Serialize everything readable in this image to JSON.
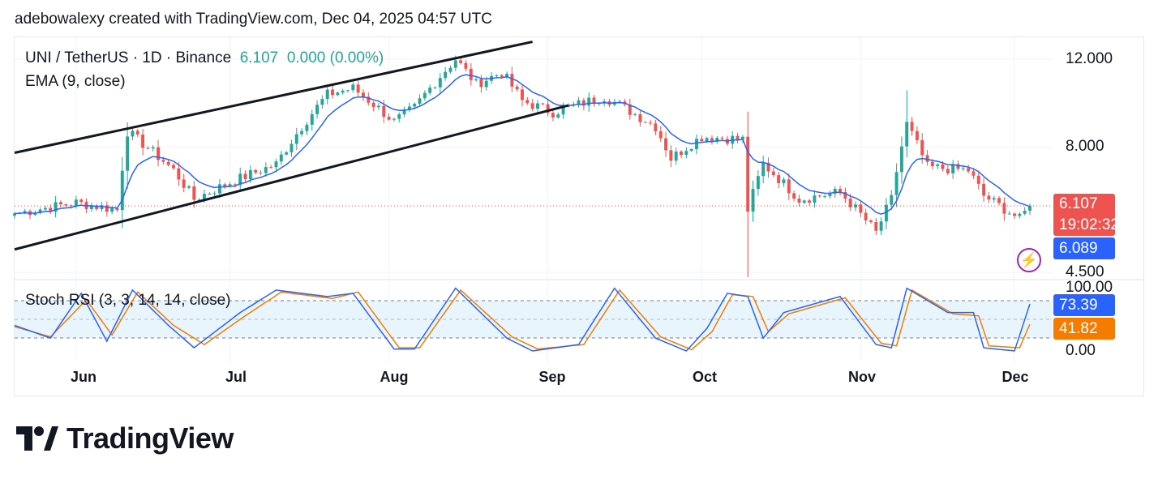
{
  "header": {
    "caption": "adebowalexy created with TradingView.com, Dec 04, 2025 04:57 UTC"
  },
  "legend": {
    "symbol": "UNI / TetherUS · 1D · Binance",
    "last": "6.107",
    "change": "0.000 (0.00%)",
    "ema": "EMA (9, close)",
    "stoch": "Stoch RSI (3, 3, 14, 14, close)"
  },
  "tags": {
    "price": "6.107",
    "countdown": "19:02:32",
    "ema": "6.089",
    "k": "73.39",
    "d": "41.82"
  },
  "price_axis": [
    "12.000",
    "8.000",
    "4.500"
  ],
  "stoch_axis": [
    "100.00",
    "0.00"
  ],
  "months": [
    "Jun",
    "Jul",
    "Aug",
    "Sep",
    "Oct",
    "Nov",
    "Dec"
  ],
  "brand": {
    "name": "TradingView"
  },
  "colors": {
    "up": "#26a69a",
    "down": "#ef5350",
    "ema": "#2962ff",
    "k": "#2962ff",
    "d": "#f57c00",
    "stoch_band": "#e3f2fd",
    "price_tag": "#ef5350",
    "ema_tag": "#2962ff",
    "d_tag": "#f57c00",
    "bolt": "#9c27b0"
  },
  "chart_data": [
    {
      "type": "candlestick",
      "title": "UNI / TetherUS · 1D · Binance",
      "x_range": [
        "2025-05-20",
        "2025-12-04"
      ],
      "y_axis": {
        "scale": "log",
        "ticks": [
          12.0,
          8.0,
          4.5
        ],
        "ylim": [
          4.4,
          13.0
        ]
      },
      "current_price": 6.107,
      "ema_current": 6.089,
      "anchors": [
        {
          "date": "2025-05-20",
          "close": 5.9
        },
        {
          "date": "2025-06-01",
          "close": 6.2
        },
        {
          "date": "2025-06-09",
          "close": 6.0
        },
        {
          "date": "2025-06-11",
          "close": 8.6
        },
        {
          "date": "2025-06-20",
          "close": 7.2
        },
        {
          "date": "2025-06-24",
          "close": 6.3
        },
        {
          "date": "2025-07-01",
          "close": 6.8
        },
        {
          "date": "2025-07-10",
          "close": 7.4
        },
        {
          "date": "2025-07-20",
          "close": 10.2
        },
        {
          "date": "2025-07-25",
          "close": 10.5
        },
        {
          "date": "2025-08-02",
          "close": 9.0
        },
        {
          "date": "2025-08-06",
          "close": 9.6
        },
        {
          "date": "2025-08-14",
          "close": 12.0
        },
        {
          "date": "2025-08-18",
          "close": 10.7
        },
        {
          "date": "2025-08-23",
          "close": 11.3
        },
        {
          "date": "2025-08-27",
          "close": 9.9
        },
        {
          "date": "2025-09-02",
          "close": 9.4
        },
        {
          "date": "2025-09-12",
          "close": 10.1
        },
        {
          "date": "2025-09-22",
          "close": 8.8
        },
        {
          "date": "2025-09-25",
          "close": 7.6
        },
        {
          "date": "2025-10-01",
          "close": 8.4
        },
        {
          "date": "2025-10-09",
          "close": 8.3
        },
        {
          "date": "2025-10-10",
          "close": 6.0
        },
        {
          "date": "2025-10-13",
          "close": 7.4
        },
        {
          "date": "2025-10-20",
          "close": 6.3
        },
        {
          "date": "2025-10-28",
          "close": 6.5
        },
        {
          "date": "2025-11-04",
          "close": 5.4
        },
        {
          "date": "2025-11-07",
          "close": 6.3
        },
        {
          "date": "2025-11-10",
          "close": 8.9
        },
        {
          "date": "2025-11-14",
          "close": 7.3
        },
        {
          "date": "2025-11-22",
          "close": 7.2
        },
        {
          "date": "2025-11-25",
          "close": 6.4
        },
        {
          "date": "2025-12-02",
          "close": 5.75
        },
        {
          "date": "2025-12-04",
          "close": 6.107
        }
      ],
      "trend_channel": {
        "upper": [
          {
            "date": "2025-05-20",
            "price": 7.8
          },
          {
            "date": "2025-08-29",
            "price": 13.0
          }
        ],
        "lower": [
          {
            "date": "2025-05-20",
            "price": 5.0
          },
          {
            "date": "2025-09-05",
            "price": 9.7
          }
        ]
      },
      "series": [
        {
          "name": "EMA (9, close)"
        }
      ]
    },
    {
      "type": "line",
      "title": "Stoch RSI (3, 3, 14, 14, close)",
      "ylim": [
        0,
        100
      ],
      "y_ticks": [
        100,
        0
      ],
      "bands": [
        80,
        50,
        20
      ],
      "series": [
        {
          "name": "K",
          "current": 73.39
        },
        {
          "name": "D",
          "current": 41.82
        }
      ],
      "k_anchors": [
        {
          "date": "2025-05-20",
          "value": 40
        },
        {
          "date": "2025-05-27",
          "value": 20
        },
        {
          "date": "2025-06-02",
          "value": 90
        },
        {
          "date": "2025-06-07",
          "value": 15
        },
        {
          "date": "2025-06-12",
          "value": 95
        },
        {
          "date": "2025-06-19",
          "value": 40
        },
        {
          "date": "2025-06-24",
          "value": 5
        },
        {
          "date": "2025-07-03",
          "value": 60
        },
        {
          "date": "2025-07-10",
          "value": 95
        },
        {
          "date": "2025-07-20",
          "value": 85
        },
        {
          "date": "2025-07-25",
          "value": 90
        },
        {
          "date": "2025-08-02",
          "value": 3
        },
        {
          "date": "2025-08-06",
          "value": 3
        },
        {
          "date": "2025-08-14",
          "value": 98
        },
        {
          "date": "2025-08-24",
          "value": 20
        },
        {
          "date": "2025-08-29",
          "value": 0
        },
        {
          "date": "2025-09-07",
          "value": 10
        },
        {
          "date": "2025-09-14",
          "value": 98
        },
        {
          "date": "2025-09-22",
          "value": 20
        },
        {
          "date": "2025-09-28",
          "value": 0
        },
        {
          "date": "2025-10-02",
          "value": 35
        },
        {
          "date": "2025-10-06",
          "value": 90
        },
        {
          "date": "2025-10-10",
          "value": 85
        },
        {
          "date": "2025-10-13",
          "value": 20
        },
        {
          "date": "2025-10-17",
          "value": 60
        },
        {
          "date": "2025-10-28",
          "value": 85
        },
        {
          "date": "2025-11-04",
          "value": 10
        },
        {
          "date": "2025-11-07",
          "value": 5
        },
        {
          "date": "2025-11-10",
          "value": 98
        },
        {
          "date": "2025-11-18",
          "value": 60
        },
        {
          "date": "2025-11-23",
          "value": 60
        },
        {
          "date": "2025-11-25",
          "value": 5
        },
        {
          "date": "2025-12-01",
          "value": 0
        },
        {
          "date": "2025-12-04",
          "value": 73.39
        }
      ],
      "d_anchors": [
        {
          "date": "2025-05-20",
          "value": 38
        },
        {
          "date": "2025-05-27",
          "value": 22
        },
        {
          "date": "2025-06-03",
          "value": 80
        },
        {
          "date": "2025-06-08",
          "value": 25
        },
        {
          "date": "2025-06-13",
          "value": 92
        },
        {
          "date": "2025-06-20",
          "value": 40
        },
        {
          "date": "2025-06-26",
          "value": 10
        },
        {
          "date": "2025-07-04",
          "value": 55
        },
        {
          "date": "2025-07-11",
          "value": 92
        },
        {
          "date": "2025-07-21",
          "value": 82
        },
        {
          "date": "2025-07-26",
          "value": 92
        },
        {
          "date": "2025-08-03",
          "value": 5
        },
        {
          "date": "2025-08-07",
          "value": 5
        },
        {
          "date": "2025-08-15",
          "value": 95
        },
        {
          "date": "2025-08-25",
          "value": 22
        },
        {
          "date": "2025-08-30",
          "value": 3
        },
        {
          "date": "2025-09-08",
          "value": 10
        },
        {
          "date": "2025-09-15",
          "value": 95
        },
        {
          "date": "2025-09-23",
          "value": 22
        },
        {
          "date": "2025-09-29",
          "value": 2
        },
        {
          "date": "2025-10-03",
          "value": 30
        },
        {
          "date": "2025-10-07",
          "value": 88
        },
        {
          "date": "2025-10-11",
          "value": 85
        },
        {
          "date": "2025-10-14",
          "value": 30
        },
        {
          "date": "2025-10-18",
          "value": 58
        },
        {
          "date": "2025-10-29",
          "value": 83
        },
        {
          "date": "2025-11-05",
          "value": 12
        },
        {
          "date": "2025-11-08",
          "value": 8
        },
        {
          "date": "2025-11-11",
          "value": 95
        },
        {
          "date": "2025-11-19",
          "value": 58
        },
        {
          "date": "2025-11-24",
          "value": 55
        },
        {
          "date": "2025-11-26",
          "value": 8
        },
        {
          "date": "2025-12-02",
          "value": 5
        },
        {
          "date": "2025-12-04",
          "value": 41.82
        }
      ]
    }
  ]
}
